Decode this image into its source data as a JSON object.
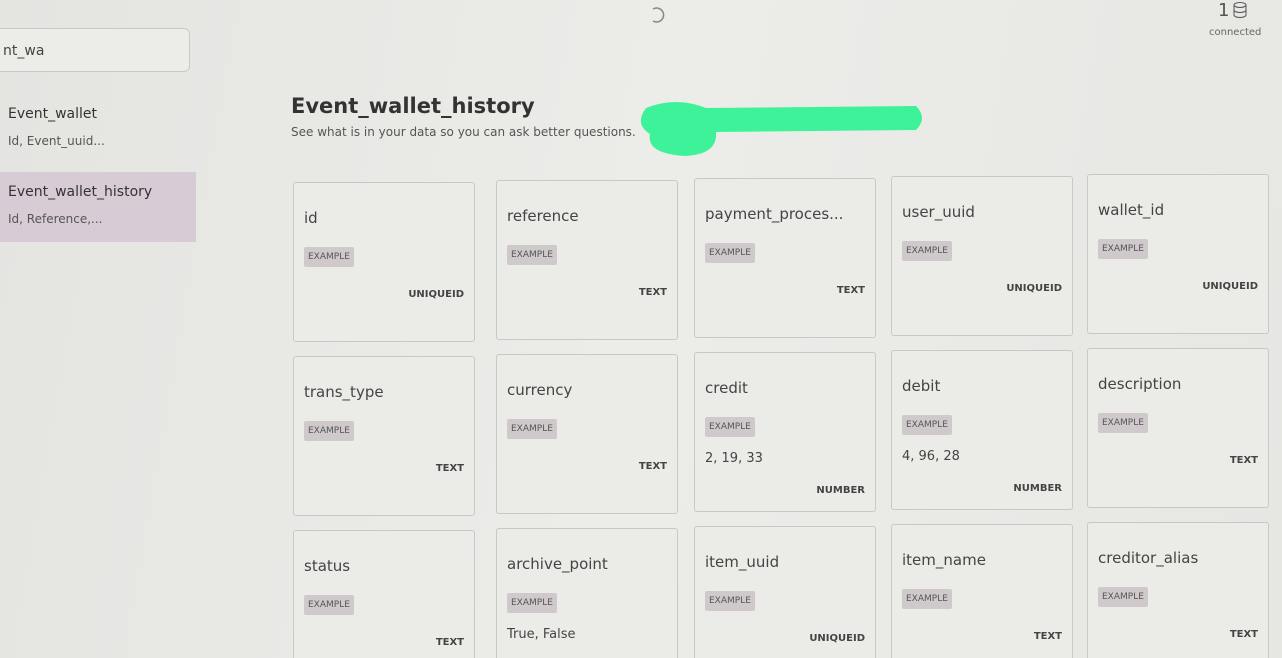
{
  "status": {
    "count": "1",
    "label": "connected"
  },
  "sidebar": {
    "search": "nt_wa",
    "items": [
      {
        "title": "Event_wallet",
        "fields": "Id, Event_uuid..."
      },
      {
        "title": "Event_wallet_history",
        "fields": "Id, Reference,..."
      }
    ]
  },
  "header": {
    "title": "Event_wallet_history",
    "subtitle": "See what is in your data so you can ask better questions."
  },
  "cards": [
    {
      "name": "id",
      "badge": "EXAMPLE",
      "type": "UNIQUEID"
    },
    {
      "name": "reference",
      "badge": "EXAMPLE",
      "type": "TEXT"
    },
    {
      "name": "payment_proces...",
      "badge": "EXAMPLE",
      "type": "TEXT"
    },
    {
      "name": "user_uuid",
      "badge": "EXAMPLE",
      "type": "UNIQUEID"
    },
    {
      "name": "wallet_id",
      "badge": "EXAMPLE",
      "type": "UNIQUEID"
    },
    {
      "name": "trans_type",
      "badge": "EXAMPLE",
      "type": "TEXT"
    },
    {
      "name": "currency",
      "badge": "EXAMPLE",
      "type": "TEXT"
    },
    {
      "name": "credit",
      "badge": "EXAMPLE",
      "examples": "2, 19, 33",
      "type": "NUMBER"
    },
    {
      "name": "debit",
      "badge": "EXAMPLE",
      "examples": "4, 96, 28",
      "type": "NUMBER"
    },
    {
      "name": "description",
      "badge": "EXAMPLE",
      "type": "TEXT"
    },
    {
      "name": "status",
      "badge": "EXAMPLE",
      "type": "TEXT"
    },
    {
      "name": "archive_point",
      "badge": "EXAMPLE",
      "examples": "True, False"
    },
    {
      "name": "item_uuid",
      "badge": "EXAMPLE",
      "type": "UNIQUEID"
    },
    {
      "name": "item_name",
      "badge": "EXAMPLE",
      "type": "TEXT"
    },
    {
      "name": "creditor_alias",
      "badge": "EXAMPLE",
      "type": "TEXT"
    }
  ]
}
